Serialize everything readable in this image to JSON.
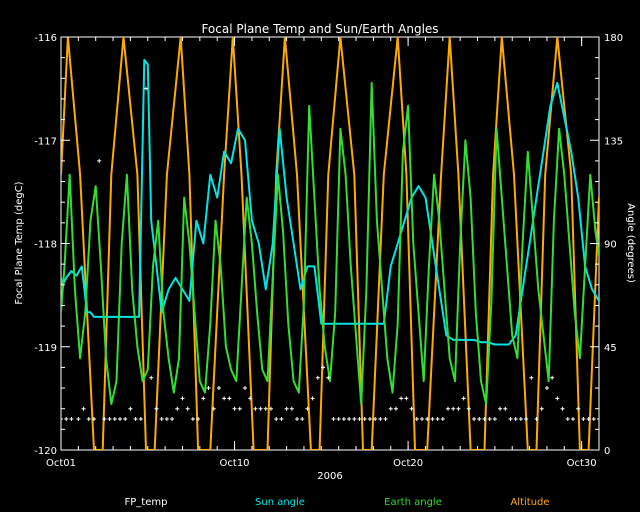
{
  "chart_data": {
    "type": "line",
    "title": "Focal Plane Temp and Sun/Earth Angles",
    "xlabel": "2006",
    "ylabel_left": "Focal Plane Temp (degC)",
    "ylabel_right": "Angle (degrees)",
    "x_range_days": [
      1,
      32
    ],
    "x_ticks": [
      {
        "day": 1,
        "label": "Oct01"
      },
      {
        "day": 11,
        "label": "Oct10"
      },
      {
        "day": 21,
        "label": "Oct20"
      },
      {
        "day": 31,
        "label": "Oct30"
      }
    ],
    "ylim_left": [
      -120,
      -116
    ],
    "y_ticks_left": [
      "-120",
      "-119",
      "-118",
      "-117",
      "-116"
    ],
    "ylim_right": [
      0,
      180
    ],
    "y_ticks_right": [
      "0",
      "45",
      "90",
      "135",
      "180"
    ],
    "legend": [
      {
        "label": "FP_temp",
        "color": "#ffffff"
      },
      {
        "label": "Sun angle",
        "color": "#00e5e5"
      },
      {
        "label": "Earth angle",
        "color": "#33dd33"
      },
      {
        "label": "Altitude",
        "color": "#ffaa00"
      }
    ],
    "legend_position": "bottom",
    "series": [
      {
        "name": "Altitude",
        "axis": "right",
        "color": "#ffaa00",
        "style": "line",
        "x": [
          1,
          1.4,
          2.1,
          2.9,
          3.4,
          3.9,
          4.6,
          5.4,
          5.9,
          6.4,
          7.1,
          7.9,
          8.4,
          8.9,
          9.6,
          10.4,
          10.9,
          11.4,
          12.1,
          12.9,
          13.4,
          13.9,
          14.6,
          15.4,
          15.9,
          16.4,
          17.1,
          17.9,
          18.4,
          18.9,
          19.6,
          20.4,
          20.9,
          21.4,
          22.1,
          22.9,
          23.4,
          23.9,
          24.6,
          25.4,
          25.9,
          26.4,
          27.1,
          27.9,
          28.4,
          28.9,
          29.6,
          30.4,
          30.9,
          31.4,
          32
        ],
        "y": [
          120,
          180,
          120,
          0,
          0,
          120,
          180,
          120,
          0,
          0,
          120,
          180,
          120,
          0,
          0,
          120,
          180,
          120,
          0,
          0,
          120,
          180,
          120,
          0,
          0,
          120,
          180,
          120,
          0,
          0,
          120,
          180,
          120,
          0,
          0,
          120,
          180,
          120,
          0,
          0,
          120,
          180,
          120,
          0,
          0,
          120,
          180,
          120,
          0,
          0,
          110
        ]
      },
      {
        "name": "Sun angle",
        "axis": "right",
        "color": "#00e5e5",
        "style": "line",
        "x": [
          1,
          1.1,
          1.3,
          1.6,
          1.9,
          2.2,
          2.5,
          2.7,
          2.9,
          3.4,
          3.6,
          3.9,
          4.3,
          4.7,
          5.1,
          5.5,
          5.8,
          6.0,
          6.2,
          6.5,
          6.8,
          7.2,
          7.6,
          8.0,
          8.4,
          8.8,
          9.2,
          9.6,
          10.0,
          10.4,
          10.8,
          11.2,
          11.6,
          12.0,
          12.4,
          12.8,
          13.2,
          13.6,
          14.0,
          14.4,
          14.8,
          15.2,
          15.6,
          16.0,
          16.4,
          16.8,
          17.2,
          17.6,
          18.0,
          18.4,
          18.8,
          19.2,
          19.6,
          20.0,
          20.4,
          20.8,
          21.2,
          21.6,
          22.0,
          22.4,
          22.8,
          23.2,
          23.6,
          24.0,
          24.4,
          24.8,
          25.2,
          25.6,
          26.0,
          26.4,
          26.8,
          27.2,
          27.6,
          28.0,
          28.4,
          28.8,
          29.2,
          29.6,
          30.0,
          30.4,
          30.8,
          31.2,
          31.6,
          32
        ],
        "y": [
          75,
          72,
          75,
          78,
          76,
          80,
          60,
          60,
          58,
          58,
          58,
          58,
          58,
          58,
          58,
          58,
          170,
          168,
          100,
          80,
          60,
          70,
          75,
          70,
          65,
          100,
          90,
          120,
          110,
          130,
          125,
          140,
          135,
          100,
          90,
          70,
          90,
          140,
          110,
          90,
          70,
          80,
          80,
          55,
          55,
          55,
          55,
          55,
          55,
          55,
          55,
          55,
          55,
          80,
          90,
          100,
          110,
          115,
          110,
          90,
          70,
          50,
          48,
          48,
          48,
          48,
          47,
          47,
          46,
          46,
          46,
          50,
          70,
          90,
          110,
          130,
          150,
          160,
          145,
          130,
          110,
          80,
          70,
          65
        ]
      },
      {
        "name": "Earth angle",
        "axis": "right",
        "color": "#33dd33",
        "style": "line",
        "x": [
          1,
          1.2,
          1.5,
          1.8,
          2.1,
          2.4,
          2.7,
          3.0,
          3.3,
          3.6,
          3.9,
          4.2,
          4.5,
          4.8,
          5.1,
          5.4,
          5.7,
          6.0,
          6.3,
          6.6,
          6.9,
          7.2,
          7.5,
          7.8,
          8.1,
          8.4,
          8.7,
          9.0,
          9.3,
          9.6,
          9.9,
          10.2,
          10.5,
          10.8,
          11.1,
          11.4,
          11.7,
          12.0,
          12.3,
          12.6,
          12.9,
          13.2,
          13.5,
          13.8,
          14.1,
          14.4,
          14.7,
          15.0,
          15.3,
          15.6,
          15.9,
          16.2,
          16.5,
          16.8,
          17.1,
          17.4,
          17.7,
          18.0,
          18.3,
          18.6,
          18.9,
          19.2,
          19.5,
          19.8,
          20.1,
          20.4,
          20.7,
          21.0,
          21.3,
          21.6,
          21.9,
          22.2,
          22.5,
          22.8,
          23.1,
          23.4,
          23.7,
          24.0,
          24.3,
          24.6,
          24.9,
          25.2,
          25.5,
          25.8,
          26.1,
          26.4,
          26.7,
          27.0,
          27.3,
          27.6,
          27.9,
          28.2,
          28.5,
          28.8,
          29.1,
          29.4,
          29.7,
          30.0,
          30.3,
          30.6,
          30.9,
          31.2,
          31.5,
          31.8,
          32
        ],
        "y": [
          60,
          80,
          120,
          70,
          40,
          60,
          100,
          115,
          80,
          40,
          20,
          30,
          90,
          120,
          70,
          45,
          30,
          35,
          80,
          100,
          60,
          40,
          25,
          40,
          110,
          90,
          60,
          30,
          25,
          55,
          100,
          80,
          45,
          35,
          30,
          70,
          110,
          90,
          60,
          35,
          30,
          75,
          120,
          95,
          55,
          30,
          25,
          65,
          150,
          110,
          70,
          45,
          30,
          60,
          140,
          120,
          80,
          50,
          20,
          70,
          160,
          100,
          70,
          40,
          25,
          55,
          130,
          150,
          90,
          60,
          30,
          80,
          120,
          100,
          70,
          40,
          30,
          90,
          135,
          110,
          60,
          30,
          20,
          65,
          140,
          110,
          80,
          50,
          40,
          90,
          130,
          100,
          70,
          50,
          30,
          100,
          140,
          120,
          90,
          60,
          40,
          80,
          120,
          95,
          85
        ]
      },
      {
        "name": "FP_temp",
        "axis": "left",
        "color": "#ffffff",
        "style": "scatter",
        "x": [
          1,
          1.3,
          1.6,
          2.0,
          2.3,
          2.6,
          2.9,
          3.2,
          3.5,
          3.8,
          4.1,
          4.4,
          4.7,
          5.0,
          5.3,
          5.6,
          5.9,
          6.2,
          6.5,
          6.8,
          7.1,
          7.4,
          7.7,
          8.0,
          8.3,
          8.6,
          8.9,
          9.2,
          9.5,
          9.8,
          10.1,
          10.4,
          10.7,
          11.0,
          11.3,
          11.6,
          11.9,
          12.2,
          12.5,
          12.8,
          13.1,
          13.4,
          13.7,
          14.0,
          14.3,
          14.6,
          14.9,
          15.2,
          15.5,
          15.8,
          16.1,
          16.4,
          16.7,
          17.0,
          17.3,
          17.6,
          17.9,
          18.2,
          18.5,
          18.8,
          19.1,
          19.4,
          19.7,
          20.0,
          20.3,
          20.6,
          20.9,
          21.2,
          21.5,
          21.8,
          22.1,
          22.4,
          22.7,
          23.0,
          23.3,
          23.6,
          23.9,
          24.2,
          24.5,
          24.8,
          25.1,
          25.4,
          25.7,
          26.0,
          26.3,
          26.6,
          26.9,
          27.2,
          27.5,
          27.8,
          28.1,
          28.4,
          28.7,
          29.0,
          29.3,
          29.6,
          29.9,
          30.2,
          30.5,
          30.8,
          31.1,
          31.4,
          31.7,
          32
        ],
        "y": [
          -119.7,
          -119.7,
          -119.7,
          -119.7,
          -119.6,
          -119.7,
          -119.7,
          -117.2,
          -119.7,
          -119.7,
          -119.7,
          -119.7,
          -119.7,
          -119.6,
          -119.7,
          -119.7,
          -116.5,
          -119.3,
          -119.6,
          -119.7,
          -119.7,
          -119.7,
          -119.6,
          -119.5,
          -119.6,
          -119.7,
          -119.7,
          -119.5,
          -119.4,
          -119.6,
          -119.4,
          -119.5,
          -119.5,
          -119.6,
          -119.6,
          -119.4,
          -119.5,
          -119.6,
          -119.6,
          -119.6,
          -119.6,
          -119.7,
          -119.7,
          -119.6,
          -119.6,
          -119.7,
          -119.7,
          -119.6,
          -119.5,
          -119.3,
          -119.2,
          -119.3,
          -119.7,
          -119.7,
          -119.7,
          -119.7,
          -119.7,
          -119.7,
          -119.7,
          -119.7,
          -119.7,
          -119.7,
          -119.7,
          -119.6,
          -119.6,
          -119.5,
          -119.5,
          -119.6,
          -119.7,
          -119.7,
          -119.7,
          -119.7,
          -119.7,
          -119.7,
          -119.6,
          -119.6,
          -119.6,
          -119.5,
          -119.6,
          -119.7,
          -119.7,
          -119.7,
          -119.7,
          -119.7,
          -119.6,
          -119.6,
          -119.7,
          -119.7,
          -119.7,
          -119.7,
          -119.3,
          -119.7,
          -119.6,
          -119.4,
          -119.3,
          -119.5,
          -119.6,
          -119.7,
          -119.7,
          -119.6,
          -119.7,
          -119.7,
          -119.7,
          -119.7
        ]
      }
    ]
  }
}
